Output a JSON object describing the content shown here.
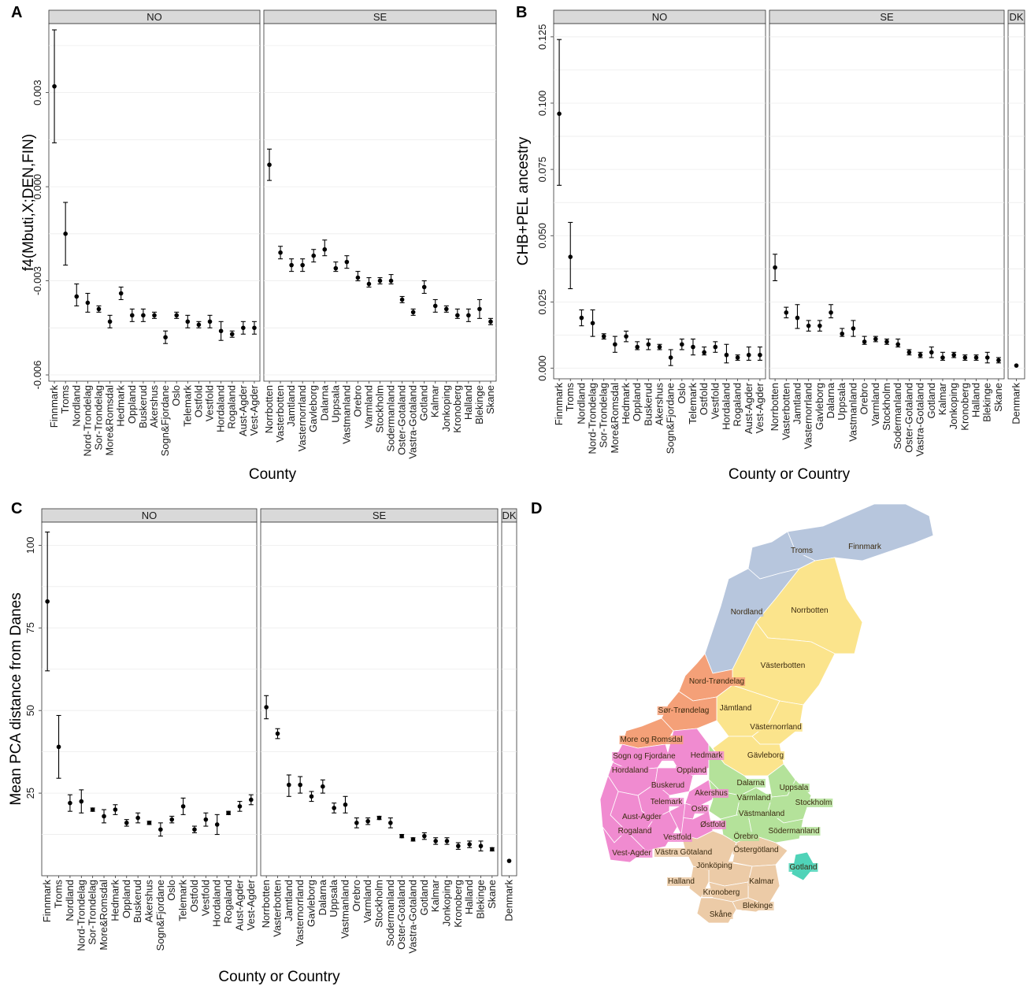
{
  "figure": {
    "panel_letters": [
      "A",
      "B",
      "C",
      "D"
    ]
  },
  "chart_data": [
    {
      "panel": "A",
      "type": "scatter",
      "error_bars": true,
      "ylabel": "f4(Mbuti,X;DEN,FIN)",
      "xlabel": "County",
      "ylim": [
        -0.0062,
        0.0052
      ],
      "yticks": [
        0.003,
        0.0,
        -0.003,
        -0.006
      ],
      "yticklabels": [
        "0.003",
        "0.000",
        "-0.003",
        "-0.006"
      ],
      "grid": true,
      "facets": [
        {
          "strip": "NO",
          "categories": [
            "Finnmark",
            "Troms",
            "Nordland",
            "Nord-Trondelag",
            "Sor-Trondelag",
            "More&Romsdal",
            "Hedmark",
            "Oppland",
            "Buskerud",
            "Akershus",
            "Sogn&Fjordane",
            "Oslo",
            "Telemark",
            "Ostfold",
            "Vestfold",
            "Hordaland",
            "Rogaland",
            "Aust-Agder",
            "Vest-Agder"
          ],
          "values": [
            0.0032,
            -0.0015,
            -0.0035,
            -0.0037,
            -0.0039,
            -0.0043,
            -0.0034,
            -0.0041,
            -0.0041,
            -0.0041,
            -0.0048,
            -0.0041,
            -0.0043,
            -0.0044,
            -0.0043,
            -0.0046,
            -0.0047,
            -0.0045,
            -0.0045
          ],
          "ci_low": [
            0.0014,
            -0.0025,
            -0.0038,
            -0.004,
            -0.004,
            -0.0045,
            -0.0036,
            -0.0043,
            -0.0043,
            -0.0042,
            -0.005,
            -0.0042,
            -0.0045,
            -0.0045,
            -0.0045,
            -0.0049,
            -0.0048,
            -0.0047,
            -0.0047
          ],
          "ci_high": [
            0.005,
            -0.0005,
            -0.0031,
            -0.0034,
            -0.0038,
            -0.0041,
            -0.0032,
            -0.0039,
            -0.0039,
            -0.004,
            -0.0046,
            -0.004,
            -0.0041,
            -0.0043,
            -0.0041,
            -0.0043,
            -0.0046,
            -0.0043,
            -0.0043
          ]
        },
        {
          "strip": "SE",
          "categories": [
            "Norrbotten",
            "Vasterbotten",
            "Jamtland",
            "Vasternorrland",
            "Gavleborg",
            "Dalarna",
            "Uppsala",
            "Vastmanland",
            "Orebro",
            "Varmland",
            "Stockholm",
            "Sodermanland",
            "Oster-Gotaland",
            "Vastra-Gotaland",
            "Gotland",
            "Kalmar",
            "Jonkoping",
            "Kronoberg",
            "Halland",
            "Blekinge",
            "Skane"
          ],
          "values": [
            0.0007,
            -0.0021,
            -0.0025,
            -0.0025,
            -0.0022,
            -0.002,
            -0.0026,
            -0.0024,
            -0.0029,
            -0.0031,
            -0.003,
            -0.003,
            -0.0036,
            -0.004,
            -0.0032,
            -0.0038,
            -0.0039,
            -0.0041,
            -0.0041,
            -0.0039,
            -0.0043
          ],
          "ci_low": [
            0.0002,
            -0.0023,
            -0.0027,
            -0.0027,
            -0.0024,
            -0.0022,
            -0.0027,
            -0.0026,
            -0.003,
            -0.0032,
            -0.0031,
            -0.0031,
            -0.0037,
            -0.0041,
            -0.0034,
            -0.004,
            -0.004,
            -0.0042,
            -0.0043,
            -0.0042,
            -0.0044
          ],
          "ci_high": [
            0.0012,
            -0.0019,
            -0.0023,
            -0.0023,
            -0.002,
            -0.0017,
            -0.0024,
            -0.0022,
            -0.0027,
            -0.0029,
            -0.0029,
            -0.0028,
            -0.0035,
            -0.0039,
            -0.003,
            -0.0036,
            -0.0038,
            -0.0039,
            -0.0039,
            -0.0036,
            -0.0042
          ]
        }
      ]
    },
    {
      "panel": "B",
      "type": "scatter",
      "error_bars": true,
      "ylabel": "CHB+PEL ancestry",
      "xlabel": "County or Country",
      "ylim": [
        -0.004,
        0.13
      ],
      "yticks": [
        0.0,
        0.025,
        0.05,
        0.075,
        0.1,
        0.125
      ],
      "yticklabels": [
        "0.000",
        "0.025",
        "0.050",
        "0.075",
        "0.100",
        "0.125"
      ],
      "grid": true,
      "facets": [
        {
          "strip": "NO",
          "categories": [
            "Finnmark",
            "Troms",
            "Nordland",
            "Nord-Trondelag",
            "Sor-Trondelag",
            "More&Romsdal",
            "Hedmark",
            "Oppland",
            "Buskerud",
            "Akershus",
            "Sogn&Fjordane",
            "Oslo",
            "Telemark",
            "Ostfold",
            "Vestfold",
            "Hordaland",
            "Rogaland",
            "Aust-Agder",
            "Vest-Agder"
          ],
          "values": [
            0.096,
            0.042,
            0.019,
            0.017,
            0.012,
            0.009,
            0.012,
            0.008,
            0.009,
            0.008,
            0.004,
            0.009,
            0.008,
            0.006,
            0.008,
            0.005,
            0.004,
            0.005,
            0.005
          ],
          "ci_low": [
            0.069,
            0.03,
            0.016,
            0.012,
            0.011,
            0.006,
            0.01,
            0.007,
            0.007,
            0.007,
            0.001,
            0.007,
            0.005,
            0.005,
            0.006,
            0.002,
            0.003,
            0.003,
            0.003
          ],
          "ci_high": [
            0.124,
            0.055,
            0.022,
            0.022,
            0.013,
            0.012,
            0.014,
            0.01,
            0.011,
            0.009,
            0.007,
            0.011,
            0.011,
            0.008,
            0.01,
            0.009,
            0.005,
            0.008,
            0.008
          ]
        },
        {
          "strip": "SE",
          "categories": [
            "Norrbotten",
            "Vasterbotten",
            "Jamtland",
            "Vasternorrland",
            "Gavleborg",
            "Dalarna",
            "Uppsala",
            "Vastmanland",
            "Orebro",
            "Varmland",
            "Stockholm",
            "Sodermanland",
            "Oster-Gotaland",
            "Vastra-Gotaland",
            "Gotland",
            "Kalmar",
            "Jonkoping",
            "Kronoberg",
            "Halland",
            "Blekinge",
            "Skane"
          ],
          "values": [
            0.038,
            0.021,
            0.019,
            0.016,
            0.016,
            0.021,
            0.013,
            0.015,
            0.01,
            0.011,
            0.01,
            0.009,
            0.006,
            0.005,
            0.006,
            0.004,
            0.005,
            0.004,
            0.004,
            0.004,
            0.003
          ],
          "ci_low": [
            0.033,
            0.019,
            0.015,
            0.014,
            0.014,
            0.019,
            0.012,
            0.012,
            0.009,
            0.01,
            0.009,
            0.008,
            0.005,
            0.004,
            0.004,
            0.003,
            0.004,
            0.003,
            0.003,
            0.002,
            0.002
          ],
          "ci_high": [
            0.043,
            0.023,
            0.024,
            0.018,
            0.018,
            0.024,
            0.015,
            0.018,
            0.012,
            0.012,
            0.011,
            0.011,
            0.007,
            0.006,
            0.008,
            0.006,
            0.006,
            0.005,
            0.005,
            0.006,
            0.004
          ]
        },
        {
          "strip": "DK",
          "categories": [
            "Denmark"
          ],
          "values": [
            0.001
          ],
          "ci_low": [
            0.001
          ],
          "ci_high": [
            0.001
          ]
        }
      ]
    },
    {
      "panel": "C",
      "type": "scatter",
      "error_bars": true,
      "ylabel": "Mean PCA distance from Danes",
      "xlabel": "County or Country",
      "ylim": [
        0,
        107
      ],
      "yticks": [
        25,
        50,
        75,
        100
      ],
      "yticklabels": [
        "25",
        "50",
        "75",
        "100"
      ],
      "grid": true,
      "facets": [
        {
          "strip": "NO",
          "categories": [
            "Finnmark",
            "Troms",
            "Nordland",
            "Nord-Trondelag",
            "Sor-Trondelag",
            "More&Romsdal",
            "Hedmark",
            "Oppland",
            "Buskerud",
            "Akershus",
            "Sogn&Fjordane",
            "Oslo",
            "Telemark",
            "Ostfold",
            "Vestfold",
            "Hordaland",
            "Rogaland",
            "Aust-Agder",
            "Vest-Agder"
          ],
          "values": [
            83,
            39,
            22,
            22.5,
            20,
            18,
            20,
            16,
            17.5,
            16,
            14,
            17,
            21,
            14,
            17,
            15.5,
            19,
            21,
            23
          ],
          "ci_low": [
            62,
            29.5,
            19.5,
            19,
            19.5,
            16,
            18.5,
            15,
            16,
            15.5,
            12,
            16,
            18.5,
            13,
            15,
            12.5,
            18.5,
            19.5,
            21.5
          ],
          "ci_high": [
            104,
            48.5,
            24.5,
            26,
            20.5,
            20,
            21.5,
            17,
            19,
            16.5,
            16,
            18,
            23.5,
            15,
            19,
            18.5,
            19.5,
            22.5,
            24.5
          ]
        },
        {
          "strip": "SE",
          "categories": [
            "Norrbotten",
            "Vasterbotten",
            "Jamtland",
            "Vasternorrland",
            "Gavleborg",
            "Dalarna",
            "Uppsala",
            "Vastmanland",
            "Orebro",
            "Varmland",
            "Stockholm",
            "Sodermanland",
            "Oster-Gotaland",
            "Vastra-Gotaland",
            "Gotland",
            "Kalmar",
            "Jonkoping",
            "Kronoberg",
            "Halland",
            "Blekinge",
            "Skane"
          ],
          "values": [
            51,
            43,
            27.5,
            27.5,
            24,
            27,
            20.5,
            21.5,
            16,
            16.5,
            17.5,
            16,
            12,
            11,
            12,
            10.5,
            10.5,
            9,
            9.5,
            9,
            8
          ],
          "ci_low": [
            47.5,
            41.5,
            24,
            25,
            22.5,
            25,
            19,
            19,
            14.5,
            15.5,
            17,
            14.5,
            11.5,
            10.5,
            11,
            9.5,
            9.5,
            8,
            8.5,
            7.5,
            7.5
          ],
          "ci_high": [
            54.5,
            44.5,
            30.5,
            30,
            25.5,
            29,
            22,
            24,
            17.5,
            17.5,
            18,
            17.5,
            12.5,
            11.5,
            13,
            11.5,
            11.5,
            10,
            10.5,
            10.5,
            8.5
          ]
        },
        {
          "strip": "DK",
          "categories": [
            "Denmark"
          ],
          "values": [
            4.5
          ],
          "ci_low": [
            4.5
          ],
          "ci_high": [
            4.5
          ]
        }
      ]
    },
    {
      "panel": "D",
      "type": "map",
      "regions": [
        {
          "name": "Troms",
          "country": "NO",
          "color": "#b7c6dd"
        },
        {
          "name": "Finnmark",
          "country": "NO",
          "color": "#b7c6dd"
        },
        {
          "name": "Nordland",
          "country": "NO",
          "color": "#b7c6dd"
        },
        {
          "name": "Nord-Trøndelag",
          "country": "NO",
          "color": "#f4a078"
        },
        {
          "name": "Sør-Trøndelag",
          "country": "NO",
          "color": "#f4a078"
        },
        {
          "name": "More og Romsdal",
          "country": "NO",
          "color": "#f4a078"
        },
        {
          "name": "Sogn og Fjordane",
          "country": "NO",
          "color": "#f08bd0"
        },
        {
          "name": "Hordaland",
          "country": "NO",
          "color": "#f08bd0"
        },
        {
          "name": "Hedmark",
          "country": "NO",
          "color": "#f08bd0"
        },
        {
          "name": "Oppland",
          "country": "NO",
          "color": "#f08bd0"
        },
        {
          "name": "Buskerud",
          "country": "NO",
          "color": "#f08bd0"
        },
        {
          "name": "Akershus",
          "country": "NO",
          "color": "#f08bd0"
        },
        {
          "name": "Telemark",
          "country": "NO",
          "color": "#f08bd0"
        },
        {
          "name": "Oslo",
          "country": "NO",
          "color": "#f08bd0"
        },
        {
          "name": "Aust-Agder",
          "country": "NO",
          "color": "#f08bd0"
        },
        {
          "name": "Rogaland",
          "country": "NO",
          "color": "#f08bd0"
        },
        {
          "name": "Østfold",
          "country": "NO",
          "color": "#f08bd0"
        },
        {
          "name": "Vestfold",
          "country": "NO",
          "color": "#f08bd0"
        },
        {
          "name": "Vest-Agder",
          "country": "NO",
          "color": "#f08bd0"
        },
        {
          "name": "Norrbotten",
          "country": "SE",
          "color": "#fbe48c"
        },
        {
          "name": "Västerbotten",
          "country": "SE",
          "color": "#fbe48c"
        },
        {
          "name": "Jämtland",
          "country": "SE",
          "color": "#fbe48c"
        },
        {
          "name": "Västernorrland",
          "country": "SE",
          "color": "#fbe48c"
        },
        {
          "name": "Gävleborg",
          "country": "SE",
          "color": "#fbe48c"
        },
        {
          "name": "Dalarna",
          "country": "SE",
          "color": "#b4e29a"
        },
        {
          "name": "Uppsala",
          "country": "SE",
          "color": "#b4e29a"
        },
        {
          "name": "Värmland",
          "country": "SE",
          "color": "#b4e29a"
        },
        {
          "name": "Västmanland",
          "country": "SE",
          "color": "#b4e29a"
        },
        {
          "name": "Stockholm",
          "country": "SE",
          "color": "#b4e29a"
        },
        {
          "name": "Örebro",
          "country": "SE",
          "color": "#b4e29a"
        },
        {
          "name": "Södermanland",
          "country": "SE",
          "color": "#b4e29a"
        },
        {
          "name": "Västra Götaland",
          "country": "SE",
          "color": "#eccba7"
        },
        {
          "name": "Östergötland",
          "country": "SE",
          "color": "#eccba7"
        },
        {
          "name": "Jönköping",
          "country": "SE",
          "color": "#eccba7"
        },
        {
          "name": "Gotland",
          "country": "SE",
          "color": "#4fd3b8"
        },
        {
          "name": "Halland",
          "country": "SE",
          "color": "#eccba7"
        },
        {
          "name": "Kalmar",
          "country": "SE",
          "color": "#eccba7"
        },
        {
          "name": "Kronoberg",
          "country": "SE",
          "color": "#eccba7"
        },
        {
          "name": "Blekinge",
          "country": "SE",
          "color": "#eccba7"
        },
        {
          "name": "Skåne",
          "country": "SE",
          "color": "#eccba7"
        }
      ]
    }
  ]
}
